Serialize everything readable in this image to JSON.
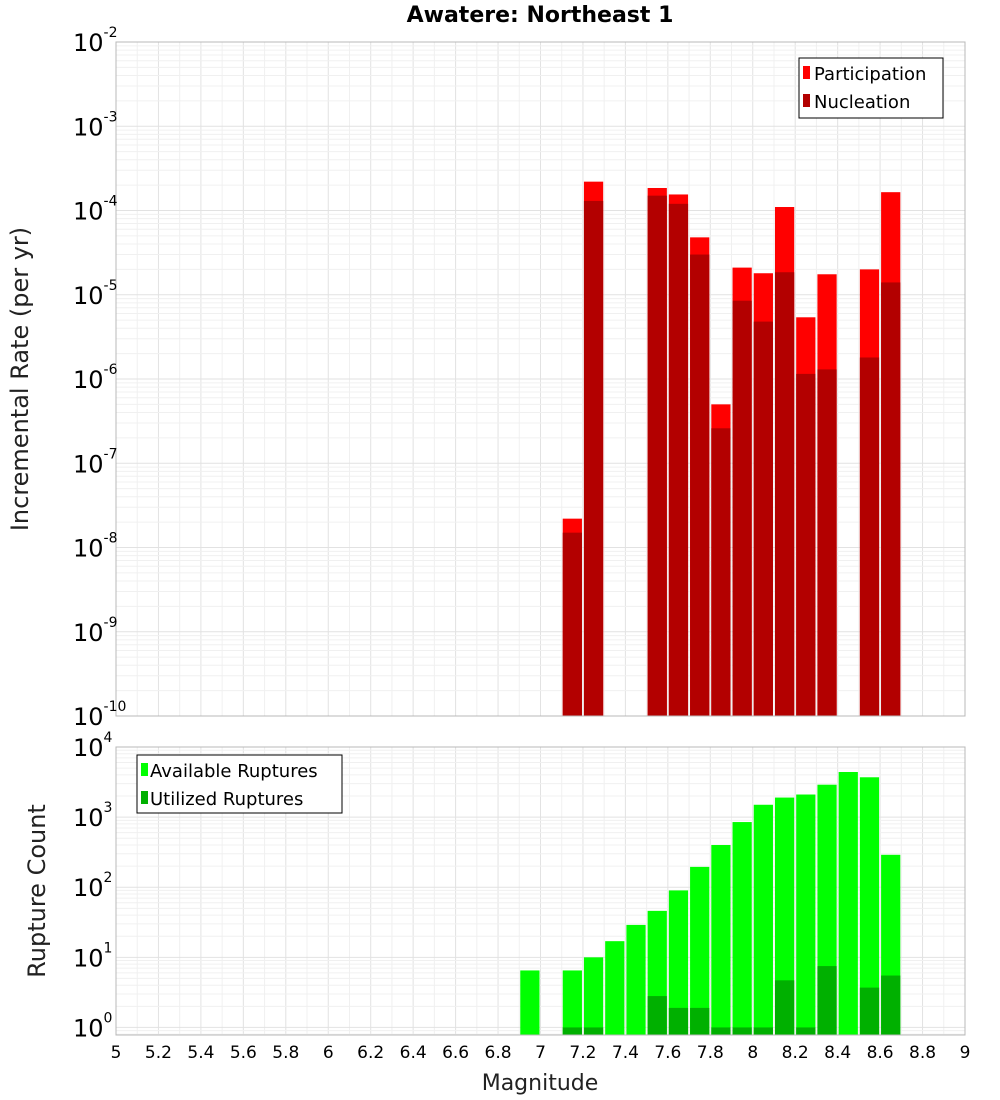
{
  "chart_data": [
    {
      "type": "bar",
      "title": "Awatere: Northeast 1",
      "ylabel": "Incremental Rate (per yr)",
      "xlabel": "",
      "yscale": "log",
      "ylim": [
        1e-10,
        0.01
      ],
      "xlim": [
        5,
        9
      ],
      "bar_width": 0.1,
      "legend": {
        "placement": "top-right"
      },
      "grid": true,
      "series": [
        {
          "name": "Participation",
          "color": "#ff0000",
          "points": [
            {
              "x": 7.15,
              "y": 2.2e-08
            },
            {
              "x": 7.25,
              "y": 0.00022
            },
            {
              "x": 7.55,
              "y": 0.000185
            },
            {
              "x": 7.65,
              "y": 0.000155
            },
            {
              "x": 7.75,
              "y": 4.8e-05
            },
            {
              "x": 7.85,
              "y": 5e-07
            },
            {
              "x": 7.95,
              "y": 2.1e-05
            },
            {
              "x": 8.05,
              "y": 1.8e-05
            },
            {
              "x": 8.15,
              "y": 0.00011
            },
            {
              "x": 8.25,
              "y": 5.4e-06
            },
            {
              "x": 8.35,
              "y": 1.75e-05
            },
            {
              "x": 8.55,
              "y": 2e-05
            },
            {
              "x": 8.65,
              "y": 0.000165
            }
          ]
        },
        {
          "name": "Nucleation",
          "color": "#b30000",
          "points": [
            {
              "x": 7.15,
              "y": 1.5e-08
            },
            {
              "x": 7.25,
              "y": 0.00013
            },
            {
              "x": 7.55,
              "y": 0.00015
            },
            {
              "x": 7.65,
              "y": 0.00012
            },
            {
              "x": 7.75,
              "y": 3e-05
            },
            {
              "x": 7.85,
              "y": 2.6e-07
            },
            {
              "x": 7.95,
              "y": 8.5e-06
            },
            {
              "x": 8.05,
              "y": 4.8e-06
            },
            {
              "x": 8.15,
              "y": 1.85e-05
            },
            {
              "x": 8.25,
              "y": 1.15e-06
            },
            {
              "x": 8.35,
              "y": 1.3e-06
            },
            {
              "x": 8.55,
              "y": 1.8e-06
            },
            {
              "x": 8.65,
              "y": 1.4e-05
            }
          ]
        }
      ]
    },
    {
      "type": "bar",
      "title": "",
      "ylabel": "Rupture Count",
      "xlabel": "Magnitude",
      "yscale": "log",
      "ylim": [
        0.78,
        10000.0
      ],
      "xlim": [
        5,
        9
      ],
      "bar_width": 0.1,
      "legend": {
        "placement": "top-left"
      },
      "grid": true,
      "series": [
        {
          "name": "Available Ruptures",
          "color": "#00ff00",
          "points": [
            {
              "x": 6.95,
              "y": 6.5
            },
            {
              "x": 7.15,
              "y": 6.5
            },
            {
              "x": 7.25,
              "y": 10
            },
            {
              "x": 7.35,
              "y": 17
            },
            {
              "x": 7.45,
              "y": 29
            },
            {
              "x": 7.55,
              "y": 46
            },
            {
              "x": 7.65,
              "y": 90
            },
            {
              "x": 7.75,
              "y": 195
            },
            {
              "x": 7.85,
              "y": 400
            },
            {
              "x": 7.95,
              "y": 850
            },
            {
              "x": 8.05,
              "y": 1500
            },
            {
              "x": 8.15,
              "y": 1900
            },
            {
              "x": 8.25,
              "y": 2100
            },
            {
              "x": 8.35,
              "y": 2900
            },
            {
              "x": 8.45,
              "y": 4400
            },
            {
              "x": 8.55,
              "y": 3700
            },
            {
              "x": 8.65,
              "y": 290
            }
          ]
        },
        {
          "name": "Utilized Ruptures",
          "color": "#00b000",
          "points": [
            {
              "x": 7.15,
              "y": 1
            },
            {
              "x": 7.25,
              "y": 1
            },
            {
              "x": 7.55,
              "y": 2.8
            },
            {
              "x": 7.65,
              "y": 1.9
            },
            {
              "x": 7.75,
              "y": 1.9
            },
            {
              "x": 7.85,
              "y": 1
            },
            {
              "x": 7.95,
              "y": 1
            },
            {
              "x": 8.05,
              "y": 1
            },
            {
              "x": 8.15,
              "y": 4.7
            },
            {
              "x": 8.25,
              "y": 1
            },
            {
              "x": 8.35,
              "y": 7.5
            },
            {
              "x": 8.55,
              "y": 3.7
            },
            {
              "x": 8.65,
              "y": 5.5
            }
          ]
        }
      ]
    }
  ],
  "top_y_ticks": [
    {
      "base": "10",
      "exp": "-2"
    },
    {
      "base": "10",
      "exp": "-3"
    },
    {
      "base": "10",
      "exp": "-4"
    },
    {
      "base": "10",
      "exp": "-5"
    },
    {
      "base": "10",
      "exp": "-6"
    },
    {
      "base": "10",
      "exp": "-7"
    },
    {
      "base": "10",
      "exp": "-8"
    },
    {
      "base": "10",
      "exp": "-9"
    },
    {
      "base": "10",
      "exp": "-10"
    }
  ],
  "bottom_y_ticks": [
    {
      "base": "10",
      "exp": "4"
    },
    {
      "base": "10",
      "exp": "3"
    },
    {
      "base": "10",
      "exp": "2"
    },
    {
      "base": "10",
      "exp": "1"
    },
    {
      "base": "10",
      "exp": "0"
    }
  ],
  "x_ticks": [
    "5",
    "5.2",
    "5.4",
    "5.6",
    "5.8",
    "6",
    "6.2",
    "6.4",
    "6.6",
    "6.8",
    "7",
    "7.2",
    "7.4",
    "7.6",
    "7.8",
    "8",
    "8.2",
    "8.4",
    "8.6",
    "8.8",
    "9"
  ]
}
